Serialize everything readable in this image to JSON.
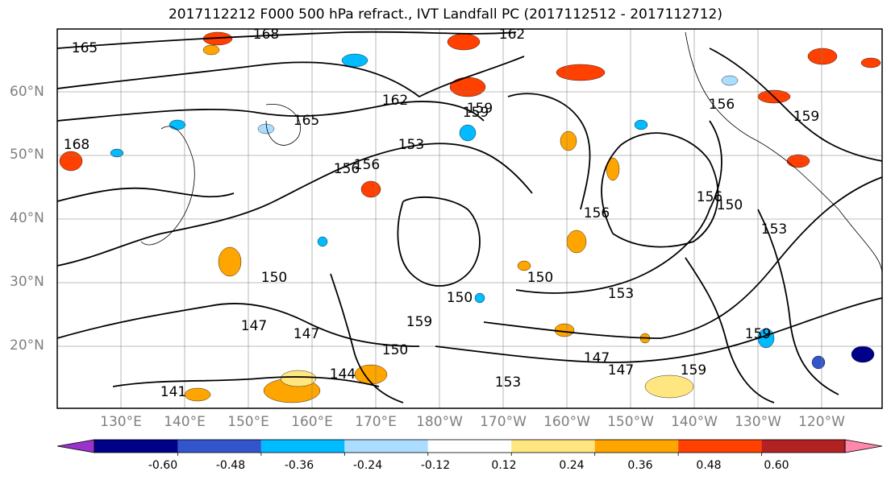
{
  "title": "2017112212 F000 500 hPa refract., IVT Landfall PC (2017112512 - 2017112712)",
  "map": {
    "lat_labels": [
      "60°N",
      "50°N",
      "40°N",
      "30°N",
      "20°N"
    ],
    "lon_labels": [
      "130°E",
      "140°E",
      "150°E",
      "160°E",
      "170°E",
      "180°W",
      "170°W",
      "160°W",
      "150°W",
      "140°W",
      "130°W",
      "120°W"
    ],
    "contour_labels": [
      "168",
      "162",
      "165",
      "162",
      "165",
      "159",
      "156",
      "153",
      "150",
      "147",
      "144",
      "156",
      "150",
      "153",
      "150",
      "159",
      "147",
      "147",
      "150",
      "159",
      "156",
      "159",
      "153",
      "156",
      "147",
      "141",
      "159",
      "150",
      "156",
      "159",
      "168",
      "153"
    ],
    "contour_color": "#000000",
    "coastline_color": "#000000",
    "grid_color": "#808080"
  },
  "colorbar": {
    "tick_labels": [
      "-0.60",
      "-0.48",
      "-0.36",
      "-0.24",
      "-0.12",
      "0.12",
      "0.24",
      "0.36",
      "0.48",
      "0.60"
    ],
    "colors": [
      "#9933cc",
      "#000088",
      "#3355cc",
      "#00bbff",
      "#aaddff",
      "#ffffff",
      "#ffe680",
      "#ffa500",
      "#ff4000",
      "#b22222",
      "#ff88aa"
    ]
  }
}
